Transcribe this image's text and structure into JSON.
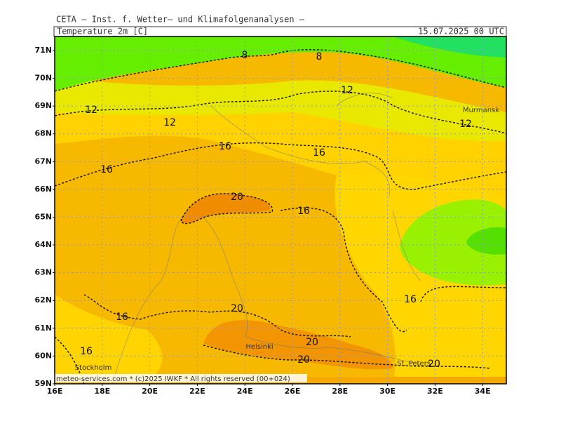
{
  "header": {
    "title": "CETA — Inst. f. Wetter— und Klimafolgenanalysen —",
    "variable": "Temperature_2m_[C]",
    "datetime": "15.07.2025 00 UTC"
  },
  "lat_labels": [
    "71N",
    "70N",
    "69N",
    "68N",
    "67N",
    "66N",
    "65N",
    "64N",
    "63N",
    "62N",
    "61N",
    "60N",
    "59N"
  ],
  "lon_labels": [
    "16E",
    "18E",
    "20E",
    "22E",
    "24E",
    "26E",
    "28E",
    "30E",
    "32E",
    "34E"
  ],
  "contour_labels": [
    "8",
    "8",
    "12",
    "12",
    "12",
    "12",
    "16",
    "16",
    "16",
    "20",
    "16",
    "20",
    "16",
    "16",
    "16",
    "20",
    "20",
    "20"
  ],
  "cities": [
    "Murmansk",
    "Helsinki",
    "Stockholm",
    "St. Peters"
  ],
  "footer": "meteo-services.com * (c)2025 IWKF * All rights reserved (00+024)"
}
